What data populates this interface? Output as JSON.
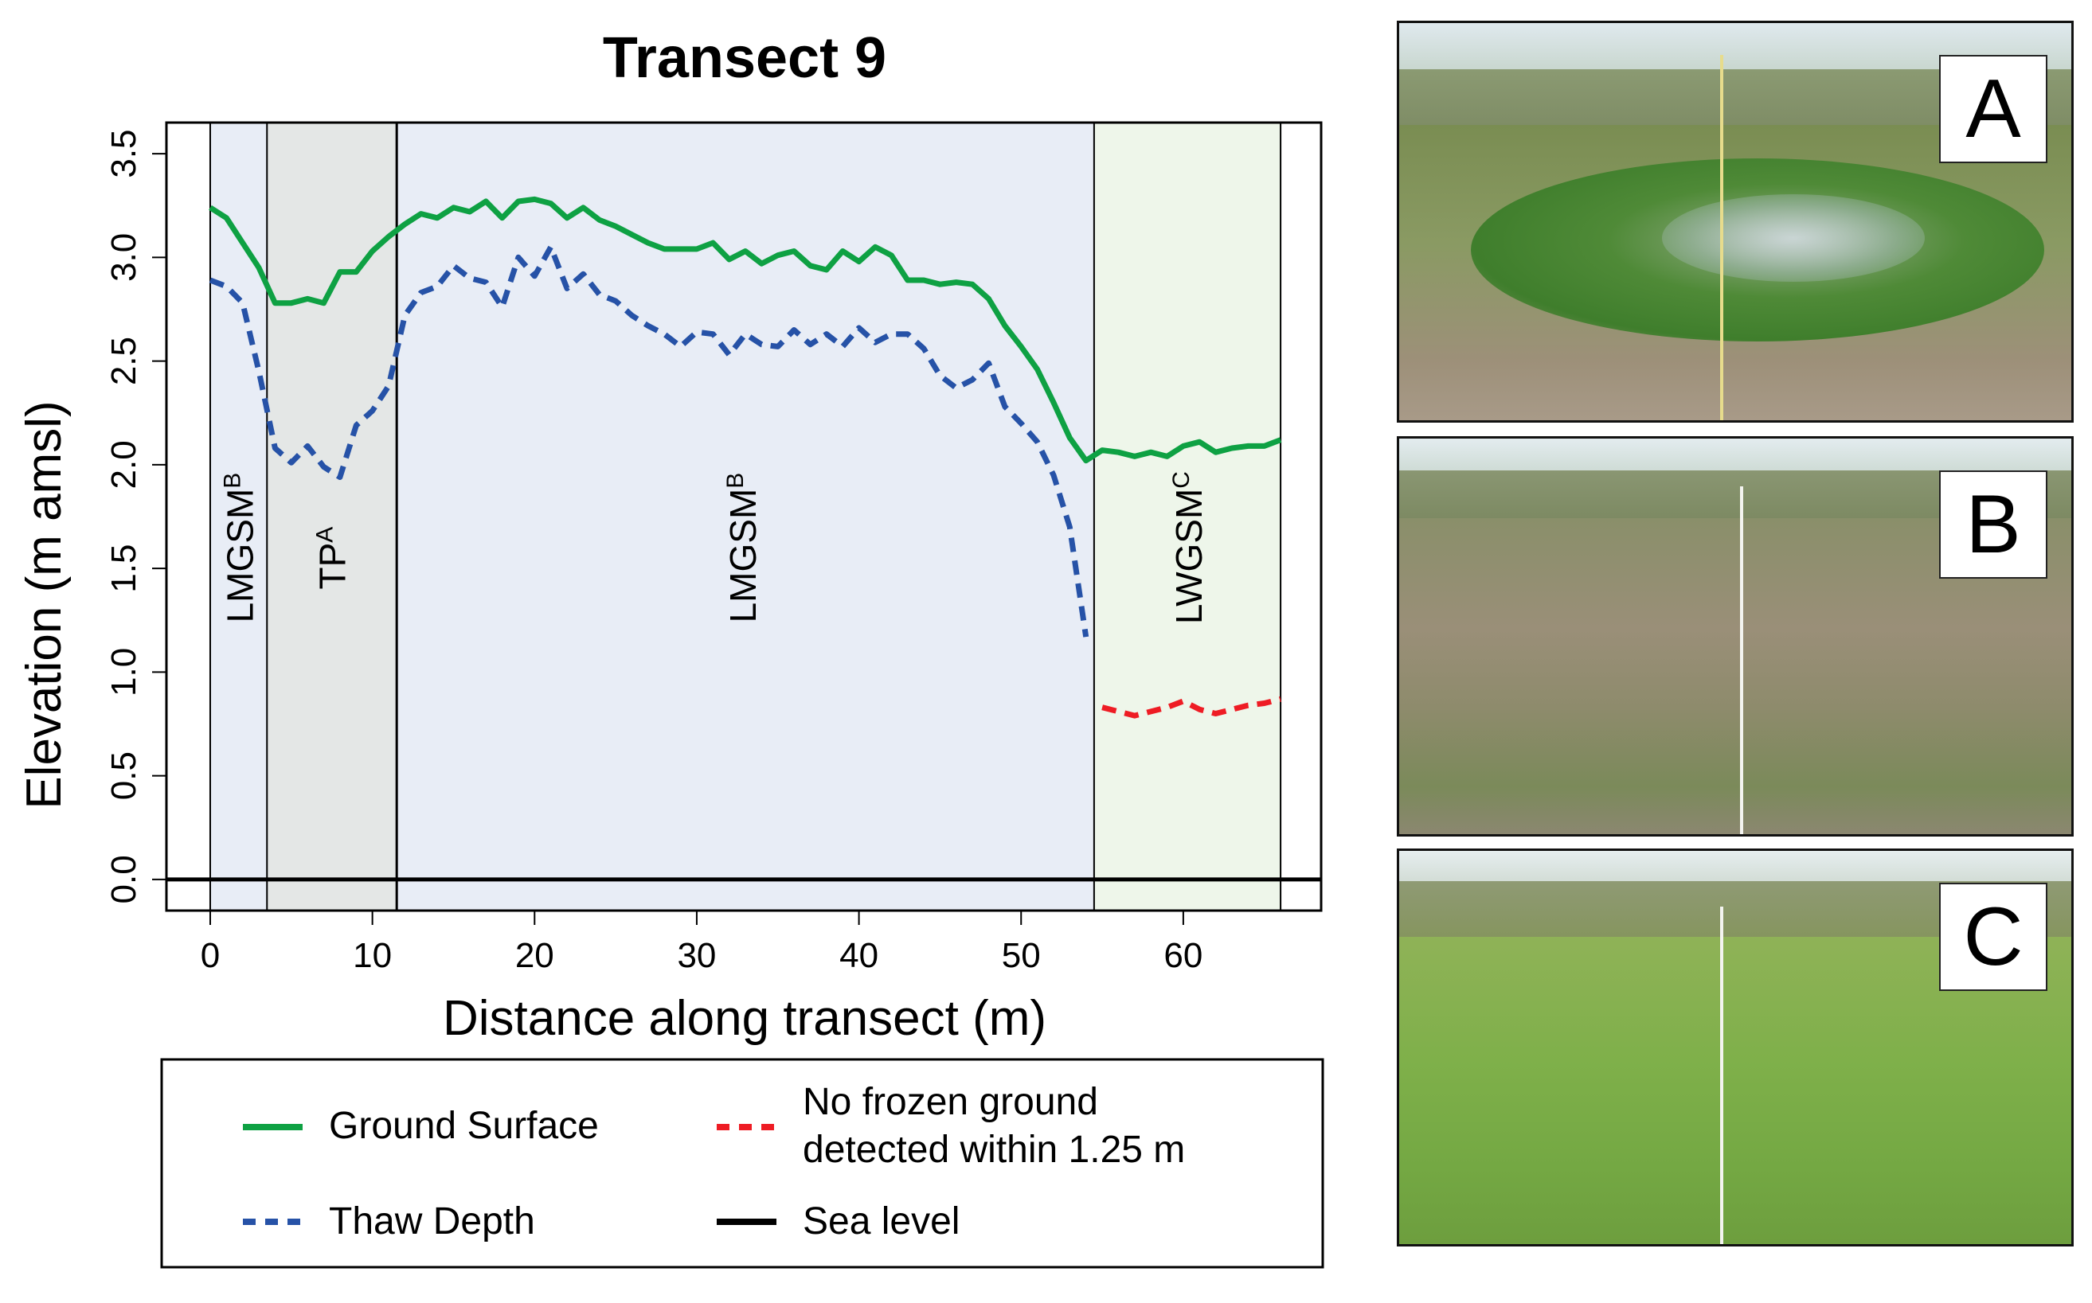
{
  "chart_data": {
    "type": "line",
    "title": "Transect 9",
    "xlabel": "Distance along transect (m)",
    "ylabel": "Elevation (m amsl)",
    "xlim": [
      -2.7,
      68.5
    ],
    "ylim": [
      -0.15,
      3.65
    ],
    "x_ticks": [
      0,
      10,
      20,
      30,
      40,
      50,
      60
    ],
    "y_ticks": [
      "0.0",
      "0.5",
      "1.0",
      "1.5",
      "2.0",
      "2.5",
      "3.0",
      "3.5"
    ],
    "zones": [
      {
        "label": "LMGSM",
        "sup": "B",
        "x0": 0,
        "x1": 3.5,
        "fill": "#e8edf6",
        "label_x": 1.8,
        "label_y": 1.6
      },
      {
        "label": "TP",
        "sup": "A",
        "x0": 3.5,
        "x1": 11.5,
        "fill": "#e4e7e6",
        "label_x": 7.5,
        "label_y": 1.55
      },
      {
        "label": "LMGSM",
        "sup": "B",
        "x0": 11.5,
        "x1": 54.5,
        "fill": "#e8edf6",
        "label_x": 32.8,
        "label_y": 1.6
      },
      {
        "label": "LWGSM",
        "sup": "C",
        "x0": 54.5,
        "x1": 66,
        "fill": "#eef6ea",
        "label_x": 60.3,
        "label_y": 1.6
      }
    ],
    "zone_boundaries": [
      0,
      3.5,
      11.5,
      54.5,
      66
    ],
    "series": [
      {
        "name": "Ground Surface",
        "color": "#0ea143",
        "style": "solid",
        "x": [
          0,
          1,
          2,
          3,
          4,
          5,
          6,
          7,
          8,
          9,
          10,
          11,
          12,
          13,
          14,
          15,
          16,
          17,
          18,
          19,
          20,
          21,
          22,
          23,
          24,
          25,
          26,
          27,
          28,
          29,
          30,
          31,
          32,
          33,
          34,
          35,
          36,
          37,
          38,
          39,
          40,
          41,
          42,
          43,
          44,
          45,
          46,
          47,
          48,
          49,
          50,
          51,
          52,
          53,
          54,
          55,
          56,
          57,
          58,
          59,
          60,
          61,
          62,
          63,
          64,
          65,
          66
        ],
        "values": [
          3.24,
          3.19,
          3.07,
          2.95,
          2.78,
          2.78,
          2.8,
          2.78,
          2.93,
          2.93,
          3.03,
          3.1,
          3.16,
          3.21,
          3.19,
          3.24,
          3.22,
          3.27,
          3.19,
          3.27,
          3.28,
          3.26,
          3.19,
          3.24,
          3.18,
          3.15,
          3.11,
          3.07,
          3.04,
          3.04,
          3.04,
          3.07,
          2.99,
          3.03,
          2.97,
          3.01,
          3.03,
          2.96,
          2.94,
          3.03,
          2.98,
          3.05,
          3.01,
          2.89,
          2.89,
          2.87,
          2.88,
          2.87,
          2.8,
          2.67,
          2.57,
          2.46,
          2.3,
          2.13,
          2.02,
          2.07,
          2.06,
          2.04,
          2.06,
          2.04,
          2.09,
          2.11,
          2.06,
          2.08,
          2.09,
          2.09,
          2.12
        ]
      },
      {
        "name": "Thaw Depth",
        "color": "#2652a7",
        "style": "dashed",
        "x": [
          0,
          1,
          2,
          3,
          4,
          5,
          6,
          7,
          8,
          9,
          10,
          11,
          12,
          13,
          14,
          15,
          16,
          17,
          18,
          19,
          20,
          21,
          22,
          23,
          24,
          25,
          26,
          27,
          28,
          29,
          30,
          31,
          32,
          33,
          34,
          35,
          36,
          37,
          38,
          39,
          40,
          41,
          42,
          43,
          44,
          45,
          46,
          47,
          48,
          49,
          50,
          51,
          52,
          53,
          54
        ],
        "values": [
          2.89,
          2.86,
          2.78,
          2.45,
          2.08,
          2.01,
          2.09,
          1.99,
          1.94,
          2.19,
          2.26,
          2.38,
          2.72,
          2.83,
          2.86,
          2.96,
          2.9,
          2.88,
          2.76,
          3.0,
          2.91,
          3.05,
          2.85,
          2.92,
          2.82,
          2.79,
          2.72,
          2.67,
          2.63,
          2.57,
          2.64,
          2.63,
          2.53,
          2.63,
          2.58,
          2.57,
          2.65,
          2.58,
          2.63,
          2.57,
          2.66,
          2.59,
          2.63,
          2.63,
          2.56,
          2.43,
          2.37,
          2.41,
          2.49,
          2.28,
          2.2,
          2.11,
          1.95,
          1.7,
          1.17
        ]
      },
      {
        "name": "No frozen ground detected within 1.25 m",
        "color": "#ee1c24",
        "style": "dashed",
        "x": [
          55,
          56,
          57,
          58,
          59,
          60,
          61,
          62,
          63,
          64,
          65,
          66
        ],
        "values": [
          0.83,
          0.81,
          0.79,
          0.81,
          0.83,
          0.86,
          0.82,
          0.8,
          0.82,
          0.84,
          0.85,
          0.87
        ]
      },
      {
        "name": "Sea level",
        "color": "#000000",
        "style": "solid",
        "x": [
          -2.7,
          68.5
        ],
        "values": [
          0,
          0
        ]
      }
    ],
    "legend": {
      "position": "bottom",
      "items": [
        {
          "label": "Ground Surface",
          "color": "#0ea143",
          "style": "solid"
        },
        {
          "label": "No frozen ground detected within 1.25 m",
          "lines": [
            "No frozen ground",
            "detected within 1.25 m"
          ],
          "color": "#ee1c24",
          "style": "dashed"
        },
        {
          "label": "Thaw Depth",
          "color": "#2652a7",
          "style": "dashed"
        },
        {
          "label": "Sea level",
          "color": "#000000",
          "style": "solid"
        }
      ]
    }
  },
  "photos": [
    {
      "label": "A"
    },
    {
      "label": "B"
    },
    {
      "label": "C"
    }
  ]
}
